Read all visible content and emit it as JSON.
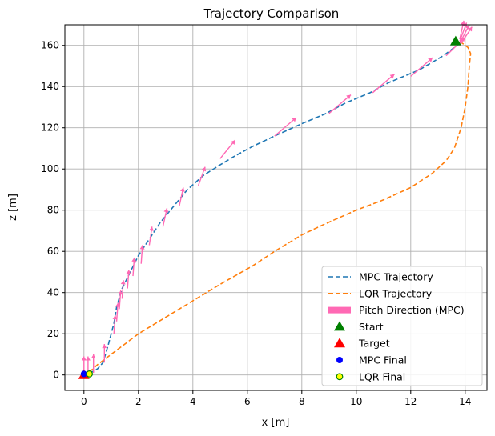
{
  "chart_data": {
    "type": "line",
    "title": "Trajectory Comparison",
    "xlabel": "x [m]",
    "ylabel": "z [m]",
    "xlim": [
      -0.7,
      14.8
    ],
    "ylim": [
      -7.5,
      170
    ],
    "xticks": [
      0,
      2,
      4,
      6,
      8,
      10,
      12,
      14
    ],
    "yticks": [
      0,
      20,
      40,
      60,
      80,
      100,
      120,
      140,
      160
    ],
    "grid": true,
    "legend_position": "lower-right",
    "series": [
      {
        "name": "MPC Trajectory",
        "style": "dashed",
        "color": "#1f77b4",
        "points": [
          [
            13.8,
            161
          ],
          [
            13.2,
            155
          ],
          [
            12.3,
            148
          ],
          [
            11.2,
            142
          ],
          [
            10.5,
            137
          ],
          [
            9.6,
            132
          ],
          [
            8.9,
            127
          ],
          [
            8.0,
            122
          ],
          [
            7.0,
            116
          ],
          [
            6.2,
            111
          ],
          [
            5.5,
            106
          ],
          [
            5.0,
            102
          ],
          [
            4.4,
            97
          ],
          [
            3.8,
            90
          ],
          [
            3.3,
            82
          ],
          [
            2.8,
            74
          ],
          [
            2.4,
            66
          ],
          [
            2.0,
            58
          ],
          [
            1.7,
            50
          ],
          [
            1.4,
            42
          ],
          [
            1.2,
            33
          ],
          [
            1.1,
            25
          ],
          [
            0.9,
            15
          ],
          [
            0.7,
            6
          ],
          [
            0.5,
            3
          ],
          [
            0.3,
            1.5
          ],
          [
            0.15,
            0.5
          ]
        ]
      },
      {
        "name": "LQR Trajectory",
        "style": "dashed",
        "color": "#ff7f0e",
        "points": [
          [
            13.8,
            162
          ],
          [
            14.1,
            159
          ],
          [
            14.2,
            156
          ],
          [
            14.15,
            150
          ],
          [
            14.1,
            140
          ],
          [
            14.0,
            130
          ],
          [
            13.85,
            120
          ],
          [
            13.6,
            110
          ],
          [
            13.3,
            104
          ],
          [
            12.8,
            98
          ],
          [
            12.0,
            91
          ],
          [
            11.0,
            85
          ],
          [
            10.0,
            80
          ],
          [
            8.8,
            73
          ],
          [
            8.0,
            68
          ],
          [
            7.0,
            60
          ],
          [
            6.2,
            53
          ],
          [
            5.0,
            44
          ],
          [
            4.0,
            36
          ],
          [
            3.0,
            28
          ],
          [
            2.0,
            20
          ],
          [
            1.5,
            15
          ],
          [
            1.0,
            10
          ],
          [
            0.5,
            5
          ],
          [
            0.25,
            2
          ],
          [
            0.15,
            0.5
          ]
        ]
      }
    ],
    "pitch_direction": {
      "name": "Pitch Direction (MPC)",
      "color": "#ff69b4",
      "arrows": [
        {
          "x": 0.0,
          "z": 0,
          "dx": 0.0,
          "dz": 9
        },
        {
          "x": 0.15,
          "z": 0,
          "dx": 0.0,
          "dz": 9
        },
        {
          "x": 0.35,
          "z": 1,
          "dx": 0.0,
          "dz": 9
        },
        {
          "x": 0.75,
          "z": 6,
          "dx": 0.0,
          "dz": 9
        },
        {
          "x": 1.1,
          "z": 20,
          "dx": 0.05,
          "dz": 9
        },
        {
          "x": 1.2,
          "z": 26,
          "dx": 0.05,
          "dz": 9
        },
        {
          "x": 1.3,
          "z": 32,
          "dx": 0.05,
          "dz": 9
        },
        {
          "x": 1.4,
          "z": 37,
          "dx": 0.05,
          "dz": 9
        },
        {
          "x": 1.6,
          "z": 42,
          "dx": 0.05,
          "dz": 9
        },
        {
          "x": 1.8,
          "z": 48,
          "dx": 0.05,
          "dz": 9
        },
        {
          "x": 2.1,
          "z": 54,
          "dx": 0.05,
          "dz": 9
        },
        {
          "x": 2.4,
          "z": 63,
          "dx": 0.1,
          "dz": 9
        },
        {
          "x": 2.9,
          "z": 72,
          "dx": 0.15,
          "dz": 9
        },
        {
          "x": 3.5,
          "z": 82,
          "dx": 0.15,
          "dz": 9
        },
        {
          "x": 4.2,
          "z": 92,
          "dx": 0.25,
          "dz": 9
        },
        {
          "x": 5.0,
          "z": 105,
          "dx": 0.55,
          "dz": 9
        },
        {
          "x": 7.0,
          "z": 116,
          "dx": 0.8,
          "dz": 9
        },
        {
          "x": 9.0,
          "z": 127,
          "dx": 0.8,
          "dz": 9
        },
        {
          "x": 10.6,
          "z": 137,
          "dx": 0.8,
          "dz": 9
        },
        {
          "x": 12.0,
          "z": 145,
          "dx": 0.8,
          "dz": 9
        },
        {
          "x": 13.3,
          "z": 155,
          "dx": 0.7,
          "dz": 9
        },
        {
          "x": 13.8,
          "z": 160,
          "dx": 0.45,
          "dz": 9
        },
        {
          "x": 13.8,
          "z": 161,
          "dx": 0.35,
          "dz": 9
        },
        {
          "x": 13.8,
          "z": 162,
          "dx": 0.25,
          "dz": 9
        },
        {
          "x": 13.8,
          "z": 163,
          "dx": 0.15,
          "dz": 9
        }
      ]
    },
    "markers": [
      {
        "name": "Start",
        "shape": "triangle",
        "color": "#008000",
        "x": 13.65,
        "z": 162
      },
      {
        "name": "Target",
        "shape": "triangle",
        "color": "#ff0000",
        "x": 0.0,
        "z": 0
      },
      {
        "name": "MPC Final",
        "shape": "circle",
        "color": "#0000ff",
        "x": 0.0,
        "z": 0.5
      },
      {
        "name": "LQR Final",
        "shape": "circle-yellow",
        "color": "#ffff00",
        "edge": "#008000",
        "x": 0.2,
        "z": 0.5
      }
    ]
  }
}
